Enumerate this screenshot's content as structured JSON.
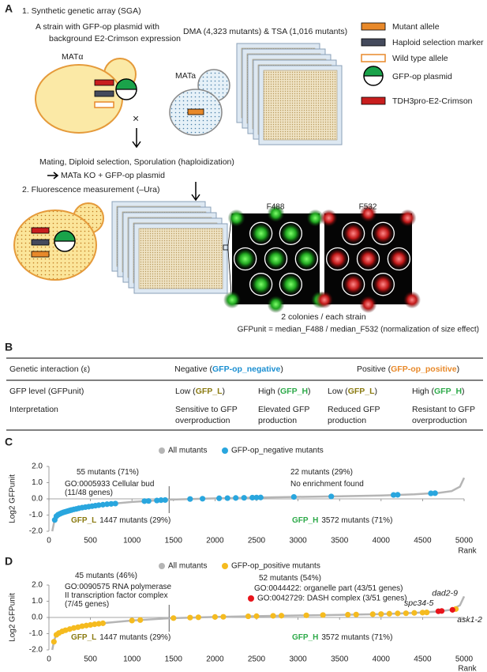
{
  "panel_a": {
    "label": "A",
    "step1": "1. Synthetic genetic array (SGA)",
    "strain": [
      "A strain with GFP-op plasmid with",
      "background E2-Crimson expression"
    ],
    "mat_alpha": "MATα",
    "mat_a": "MATa",
    "cross": "×",
    "collections": "DMA (4,323 mutants) & TSA (1,016 mutants)",
    "legend": [
      "Mutant allele",
      "Haploid selection marker",
      "Wild type allele",
      "GFP-op plasmid",
      "TDH3pro-E2-Crimson"
    ],
    "process": "Mating, Diploid selection, Sporulation (haploidization)",
    "product": "MATa KO + GFP-op plasmid",
    "step2": "2. Fluorescence measurement (–Ura)",
    "channels": [
      "F488",
      "F532"
    ],
    "colonies": "2 colonies / each strain",
    "formula": "GFPunit = median_F488 / median_F532 (normalization of size effect)"
  },
  "panel_b": {
    "label": "B",
    "header": [
      {
        "text": [
          "Genetic interaction (ε)"
        ]
      },
      {
        "text": [
          "Negative ("
        ],
        "em": "GFP-op_negative",
        "after": ")",
        "color": "#1b8fd1"
      },
      {
        "text": [
          "Positive ("
        ],
        "em": "GFP-op_positive",
        "after": ")",
        "color": "#e8892a"
      }
    ],
    "rows": [
      [
        {
          "text": [
            "GFP level (GFPunit)"
          ]
        },
        {
          "text": [
            "Low ("
          ],
          "em": "GFP_L",
          "after": ")",
          "color": "#8b7b12"
        },
        {
          "text": [
            "High ("
          ],
          "em": "GFP_H",
          "after": ")",
          "color": "#2eaa4a"
        },
        {
          "text": [
            "Low ("
          ],
          "em": "GFP_L",
          "after": ")",
          "color": "#8b7b12"
        },
        {
          "text": [
            "High ("
          ],
          "em": "GFP_H",
          "after": ")",
          "color": "#2eaa4a"
        }
      ],
      [
        {
          "text": [
            "Interpretation"
          ]
        },
        {
          "text": [
            "Sensitive to GFP",
            "overproduction"
          ]
        },
        {
          "text": [
            "Elevated GFP",
            "production"
          ]
        },
        {
          "text": [
            "Reduced GFP",
            "production"
          ]
        },
        {
          "text": [
            "Resistant to GFP",
            "overproduction"
          ]
        }
      ]
    ]
  },
  "chart_data": [
    {
      "type": "scatter",
      "label": "C",
      "ylabel": "Log2 GFPunit",
      "xlabel": "Rank",
      "xlim": [
        0,
        5000
      ],
      "xticks": [
        0,
        500,
        1000,
        1500,
        2000,
        2500,
        3000,
        3500,
        4000,
        4500,
        5000
      ],
      "ylim": [
        -2,
        2
      ],
      "yticks": [
        {
          "value": 2,
          "label": "2.0"
        },
        {
          "value": 1,
          "label": "1.0"
        },
        {
          "value": 0,
          "label": "0.0"
        },
        {
          "value": -1,
          "label": "-1.0"
        },
        {
          "value": -2,
          "label": "-2.0"
        }
      ],
      "divider": 1447,
      "series": [
        {
          "name": "All mutants",
          "color": "#b5b5b5",
          "style": "line",
          "x": [
            40,
            60,
            80,
            100,
            150,
            200,
            300,
            400,
            500,
            700,
            1000,
            1447,
            2000,
            2500,
            3000,
            3500,
            4000,
            4400,
            4700,
            4850,
            4950,
            5000
          ],
          "values": [
            -2.0,
            -1.5,
            -1.15,
            -1.0,
            -0.88,
            -0.79,
            -0.65,
            -0.54,
            -0.46,
            -0.33,
            -0.19,
            -0.05,
            0.03,
            0.08,
            0.12,
            0.16,
            0.21,
            0.28,
            0.37,
            0.48,
            0.75,
            1.3
          ]
        },
        {
          "name": "GFP-op_negative mutants",
          "color": "#29a6de",
          "x": [
            70,
            90,
            110,
            130,
            150,
            170,
            190,
            210,
            230,
            250,
            270,
            300,
            330,
            360,
            400,
            440,
            480,
            520,
            560,
            600,
            650,
            700,
            750,
            800,
            1150,
            1200,
            1300,
            1350,
            1400,
            1700,
            1850,
            2050,
            2150,
            2250,
            2350,
            2450,
            2500,
            2550,
            2950,
            3400,
            4150,
            4200,
            4600,
            4650
          ],
          "values": [
            -1.3,
            -1.07,
            -0.98,
            -0.93,
            -0.88,
            -0.84,
            -0.81,
            -0.78,
            -0.75,
            -0.72,
            -0.69,
            -0.65,
            -0.62,
            -0.58,
            -0.54,
            -0.51,
            -0.48,
            -0.45,
            -0.42,
            -0.39,
            -0.36,
            -0.33,
            -0.31,
            -0.29,
            -0.14,
            -0.13,
            -0.1,
            -0.08,
            -0.07,
            -0.01,
            0.01,
            0.035,
            0.045,
            0.055,
            0.065,
            0.075,
            0.08,
            0.085,
            0.12,
            0.15,
            0.24,
            0.25,
            0.34,
            0.35
          ]
        }
      ],
      "annotations": [
        {
          "text": "55 mutants (71%)"
        },
        {
          "text": "22 mutants (29%)"
        },
        {
          "text": "GO:0005933 Cellular bud"
        },
        {
          "text": "(11/48 genes)"
        },
        {
          "text": "No enrichment found"
        },
        {
          "em": "GFP_L",
          "text": "1447 mutants (29%)",
          "color": "#8b7b12"
        },
        {
          "em": "GFP_H",
          "text": "3572 mutants (71%)",
          "color": "#2eaa4a"
        }
      ]
    },
    {
      "type": "scatter",
      "label": "D",
      "ylabel": "Log2 GFPunit",
      "xlabel": "Rank",
      "xlim": [
        0,
        5000
      ],
      "xticks": [
        0,
        500,
        1000,
        1500,
        2000,
        2500,
        3000,
        3500,
        4000,
        4500,
        5000
      ],
      "ylim": [
        -2,
        2
      ],
      "yticks": [
        {
          "value": 2,
          "label": "2.0"
        },
        {
          "value": 1,
          "label": "1.0"
        },
        {
          "value": 0,
          "label": "0.0"
        },
        {
          "value": -1,
          "label": "-1.0"
        },
        {
          "value": -2,
          "label": "-2.0"
        }
      ],
      "divider": 1447,
      "series": [
        {
          "name": "All mutants",
          "color": "#b5b5b5",
          "style": "line",
          "x": [
            40,
            60,
            80,
            100,
            150,
            200,
            300,
            400,
            500,
            700,
            1000,
            1447,
            2000,
            2500,
            3000,
            3500,
            4000,
            4400,
            4700,
            4850,
            4950,
            5000
          ],
          "values": [
            -2.0,
            -1.5,
            -1.15,
            -1.0,
            -0.88,
            -0.79,
            -0.65,
            -0.54,
            -0.46,
            -0.33,
            -0.19,
            -0.05,
            0.03,
            0.08,
            0.12,
            0.16,
            0.21,
            0.28,
            0.37,
            0.48,
            0.75,
            1.3
          ]
        },
        {
          "name": "GFP-op_positive mutants",
          "color": "#f5bb1f",
          "x": [
            60,
            90,
            120,
            160,
            200,
            250,
            300,
            350,
            400,
            450,
            500,
            550,
            600,
            650,
            1000,
            1100,
            1500,
            1700,
            1800,
            2000,
            2100,
            2400,
            2500,
            2700,
            2800,
            3100,
            3300,
            3600,
            3700,
            3900,
            4000,
            4100,
            4200,
            4300,
            4400,
            4500,
            4550,
            4900
          ],
          "values": [
            -1.5,
            -1.07,
            -0.96,
            -0.86,
            -0.79,
            -0.72,
            -0.65,
            -0.6,
            -0.54,
            -0.5,
            -0.46,
            -0.42,
            -0.39,
            -0.36,
            -0.19,
            -0.16,
            -0.04,
            -0.01,
            0.01,
            0.03,
            0.04,
            0.07,
            0.08,
            0.1,
            0.11,
            0.13,
            0.15,
            0.17,
            0.18,
            0.2,
            0.21,
            0.23,
            0.25,
            0.26,
            0.28,
            0.3,
            0.31,
            0.52
          ]
        },
        {
          "name": "GO:0042729: DASH complex (3/51 genes)",
          "color": "#e8141b",
          "x": [
            4690,
            4730,
            4860
          ],
          "values": [
            0.38,
            0.4,
            0.47
          ],
          "point_labels": [
            "spc34-5",
            "dad2-9",
            "ask1-2"
          ]
        }
      ],
      "annotations": [
        {
          "text": "45 mutants (46%)"
        },
        {
          "text": "52 mutants (54%)"
        },
        {
          "text": "GO:0090575 RNA polymerase"
        },
        {
          "text": "II transcription factor complex"
        },
        {
          "text": "(7/45 genes)"
        },
        {
          "text": "GO:0044422: organelle part (43/51 genes)"
        },
        {
          "em": "GFP_L",
          "text": "1447 mutants (29%)",
          "color": "#8b7b12"
        },
        {
          "em": "GFP_H",
          "text": "3572 mutants (71%)",
          "color": "#2eaa4a"
        }
      ]
    }
  ]
}
